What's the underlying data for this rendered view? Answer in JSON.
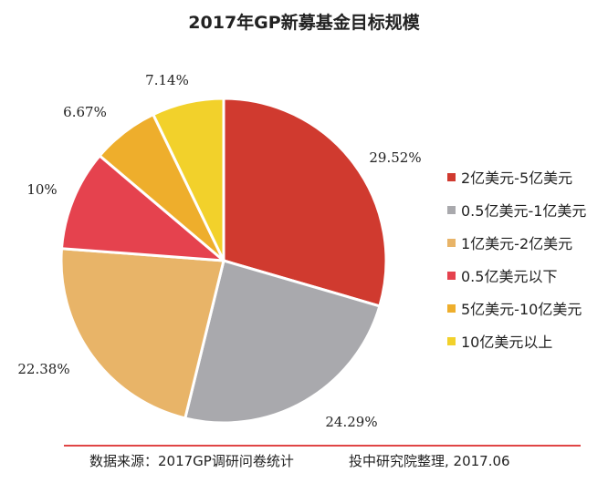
{
  "chart_data": {
    "type": "pie",
    "title": "2017年GP新募基金目标规模",
    "slices": [
      {
        "label": "2亿美元-5亿美元",
        "value": 29.52,
        "value_label": "29.52%",
        "color": "#d03a2f"
      },
      {
        "label": "0.5亿美元-1亿美元",
        "value": 24.29,
        "value_label": "24.29%",
        "color": "#a9a9ad"
      },
      {
        "label": "1亿美元-2亿美元",
        "value": 22.38,
        "value_label": "22.38%",
        "color": "#e8b468"
      },
      {
        "label": "0.5亿美元以下",
        "value": 10,
        "value_label": "10%",
        "color": "#e5424e"
      },
      {
        "label": "5亿美元-10亿美元",
        "value": 6.67,
        "value_label": "6.67%",
        "color": "#eeae2c"
      },
      {
        "label": "10亿美元以上",
        "value": 7.14,
        "value_label": "7.14%",
        "color": "#f2d12b"
      }
    ],
    "legend_position": "right"
  },
  "footer": {
    "source": "数据来源：2017GP调研问卷统计",
    "credit": "投中研究院整理, 2017.06"
  }
}
